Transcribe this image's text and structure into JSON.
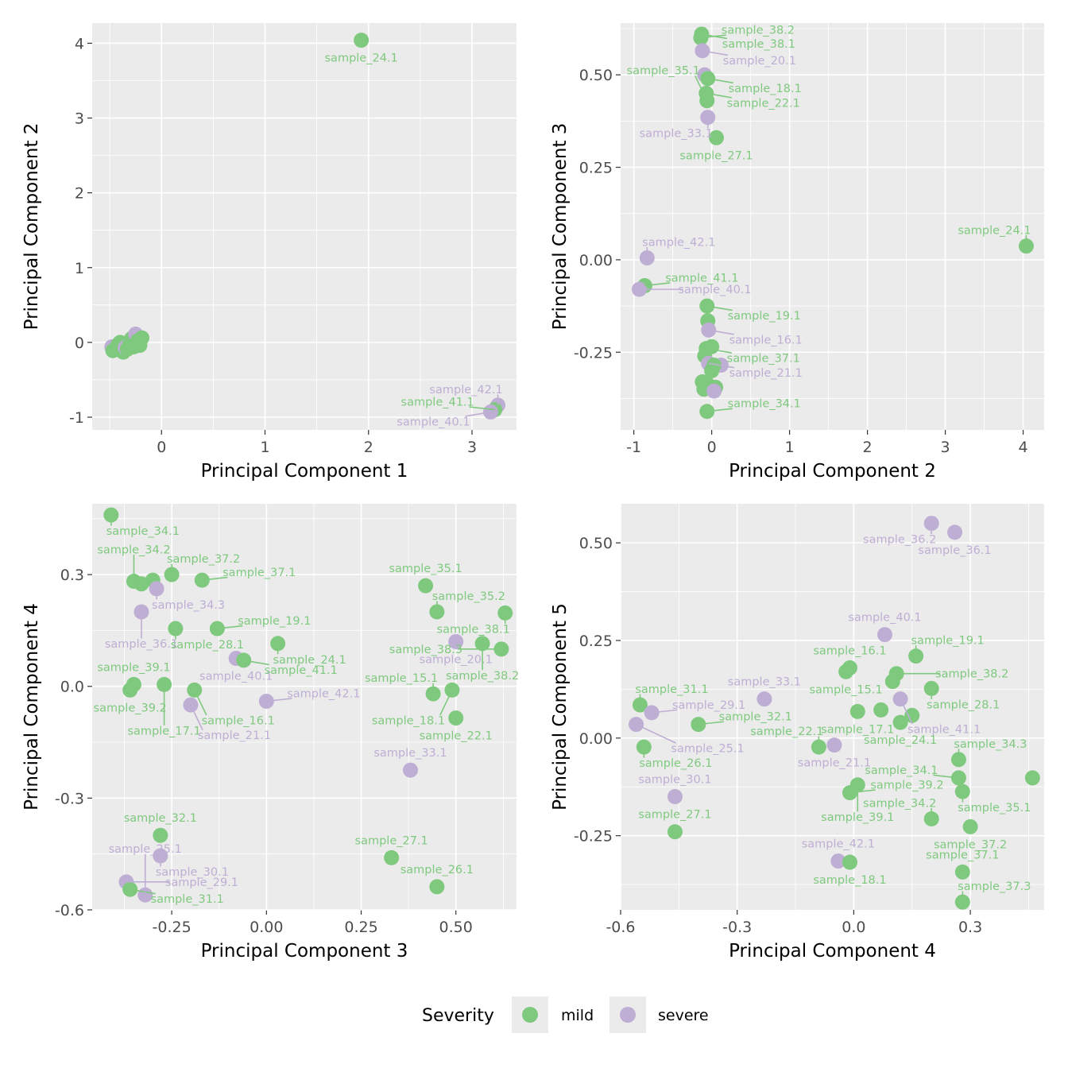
{
  "colors": {
    "mild": "#7fc97f",
    "severe": "#beaed4"
  },
  "legend": {
    "title": "Severity",
    "items": [
      {
        "key": "mild",
        "label": "mild"
      },
      {
        "key": "severe",
        "label": "severe"
      }
    ]
  },
  "chart_data": [
    {
      "type": "scatter",
      "xlabel": "Principal Component 1",
      "ylabel": "Principal Component 2",
      "xlim": [
        -0.67,
        3.43
      ],
      "ylim": [
        -1.17,
        4.27
      ],
      "xticks": [
        0,
        1,
        2,
        3
      ],
      "xtick_labels": [
        "0",
        "1",
        "2",
        "3"
      ],
      "yticks": [
        -1,
        0,
        1,
        2,
        3,
        4
      ],
      "ytick_labels": [
        "-1",
        "0",
        "1",
        "2",
        "3",
        "4"
      ],
      "grid": true,
      "points": [
        {
          "x": 1.93,
          "y": 4.04,
          "severity": "mild",
          "label": "sample_24.1"
        },
        {
          "x": 3.25,
          "y": -0.84,
          "severity": "severe",
          "label": "sample_42.1"
        },
        {
          "x": 3.22,
          "y": -0.9,
          "severity": "mild",
          "label": "sample_41.1"
        },
        {
          "x": 3.18,
          "y": -0.93,
          "severity": "severe",
          "label": "sample_40.1"
        },
        {
          "x": -0.48,
          "y": -0.06,
          "severity": "severe",
          "label": ""
        },
        {
          "x": -0.47,
          "y": -0.11,
          "severity": "mild",
          "label": ""
        },
        {
          "x": -0.42,
          "y": -0.03,
          "severity": "mild",
          "label": ""
        },
        {
          "x": -0.4,
          "y": 0.0,
          "severity": "mild",
          "label": ""
        },
        {
          "x": -0.37,
          "y": -0.13,
          "severity": "mild",
          "label": ""
        },
        {
          "x": -0.35,
          "y": -0.07,
          "severity": "severe",
          "label": ""
        },
        {
          "x": -0.33,
          "y": -0.09,
          "severity": "mild",
          "label": ""
        },
        {
          "x": -0.31,
          "y": -0.04,
          "severity": "mild",
          "label": ""
        },
        {
          "x": -0.29,
          "y": 0.05,
          "severity": "mild",
          "label": ""
        },
        {
          "x": -0.27,
          "y": -0.06,
          "severity": "mild",
          "label": ""
        },
        {
          "x": -0.25,
          "y": 0.11,
          "severity": "severe",
          "label": ""
        },
        {
          "x": -0.23,
          "y": 0.02,
          "severity": "mild",
          "label": ""
        },
        {
          "x": -0.21,
          "y": -0.04,
          "severity": "mild",
          "label": ""
        },
        {
          "x": -0.19,
          "y": 0.06,
          "severity": "mild",
          "label": ""
        }
      ]
    },
    {
      "type": "scatter",
      "xlabel": "Principal Component 2",
      "ylabel": "Principal Component 3",
      "xlim": [
        -1.17,
        4.27
      ],
      "ylim": [
        -0.46,
        0.64
      ],
      "xticks": [
        -1,
        0,
        1,
        2,
        3,
        4
      ],
      "xtick_labels": [
        "-1",
        "0",
        "1",
        "2",
        "3",
        "4"
      ],
      "yticks": [
        -0.25,
        0,
        0.25,
        0.5
      ],
      "ytick_labels": [
        "-0.25",
        "0.00",
        "0.25",
        "0.50"
      ],
      "grid": true,
      "points": [
        {
          "x": 4.04,
          "y": 0.037,
          "severity": "mild",
          "label": "sample_24.1"
        },
        {
          "x": -0.13,
          "y": 0.61,
          "severity": "mild",
          "label": "sample_38.1"
        },
        {
          "x": -0.14,
          "y": 0.6,
          "severity": "mild",
          "label": "sample_38.2"
        },
        {
          "x": -0.12,
          "y": 0.565,
          "severity": "severe",
          "label": "sample_20.1"
        },
        {
          "x": -0.09,
          "y": 0.5,
          "severity": "severe",
          "label": ""
        },
        {
          "x": -0.05,
          "y": 0.49,
          "severity": "mild",
          "label": "sample_18.1"
        },
        {
          "x": -0.07,
          "y": 0.45,
          "severity": "mild",
          "label": "sample_22.1"
        },
        {
          "x": -0.06,
          "y": 0.43,
          "severity": "mild",
          "label": "sample_35.1"
        },
        {
          "x": -0.05,
          "y": 0.385,
          "severity": "severe",
          "label": "sample_33.1"
        },
        {
          "x": 0.06,
          "y": 0.33,
          "severity": "mild",
          "label": "sample_27.1"
        },
        {
          "x": -0.83,
          "y": 0.005,
          "severity": "severe",
          "label": "sample_42.1"
        },
        {
          "x": -0.86,
          "y": -0.07,
          "severity": "mild",
          "label": "sample_41.1"
        },
        {
          "x": -0.93,
          "y": -0.08,
          "severity": "severe",
          "label": "sample_40.1"
        },
        {
          "x": -0.06,
          "y": -0.125,
          "severity": "mild",
          "label": "sample_19.1"
        },
        {
          "x": -0.05,
          "y": -0.165,
          "severity": "mild",
          "label": ""
        },
        {
          "x": -0.04,
          "y": -0.19,
          "severity": "severe",
          "label": "sample_16.1"
        },
        {
          "x": -0.07,
          "y": -0.24,
          "severity": "mild",
          "label": "sample_37.1"
        },
        {
          "x": 0.0,
          "y": -0.235,
          "severity": "mild",
          "label": ""
        },
        {
          "x": -0.09,
          "y": -0.26,
          "severity": "mild",
          "label": ""
        },
        {
          "x": -0.04,
          "y": -0.28,
          "severity": "severe",
          "label": "sample_21.1"
        },
        {
          "x": 0.12,
          "y": -0.285,
          "severity": "severe",
          "label": ""
        },
        {
          "x": 0.03,
          "y": -0.285,
          "severity": "mild",
          "label": ""
        },
        {
          "x": 0.0,
          "y": -0.3,
          "severity": "mild",
          "label": ""
        },
        {
          "x": -0.12,
          "y": -0.33,
          "severity": "mild",
          "label": ""
        },
        {
          "x": -0.06,
          "y": -0.335,
          "severity": "mild",
          "label": ""
        },
        {
          "x": 0.05,
          "y": -0.345,
          "severity": "mild",
          "label": ""
        },
        {
          "x": -0.1,
          "y": -0.35,
          "severity": "mild",
          "label": ""
        },
        {
          "x": 0.03,
          "y": -0.355,
          "severity": "severe",
          "label": ""
        },
        {
          "x": -0.06,
          "y": -0.41,
          "severity": "mild",
          "label": "sample_34.1"
        }
      ]
    },
    {
      "type": "scatter",
      "xlabel": "Principal Component 3",
      "ylabel": "Principal Component 4",
      "xlim": [
        -0.46,
        0.66
      ],
      "ylim": [
        -0.6,
        0.49
      ],
      "xticks": [
        -0.25,
        0,
        0.25,
        0.5
      ],
      "xtick_labels": [
        "-0.25",
        "0.00",
        "0.25",
        "0.50"
      ],
      "yticks": [
        -0.6,
        -0.3,
        0,
        0.3
      ],
      "ytick_labels": [
        "-0.6",
        "-0.3",
        "0.0",
        "0.3"
      ],
      "grid": true,
      "points": [
        {
          "x": -0.41,
          "y": 0.46,
          "severity": "mild",
          "label": "sample_34.1"
        },
        {
          "x": -0.35,
          "y": 0.282,
          "severity": "mild",
          "label": "sample_34.2"
        },
        {
          "x": -0.33,
          "y": 0.275,
          "severity": "mild",
          "label": ""
        },
        {
          "x": -0.3,
          "y": 0.285,
          "severity": "mild",
          "label": ""
        },
        {
          "x": -0.29,
          "y": 0.262,
          "severity": "severe",
          "label": "sample_34.3"
        },
        {
          "x": -0.25,
          "y": 0.3,
          "severity": "mild",
          "label": "sample_37.2"
        },
        {
          "x": -0.17,
          "y": 0.285,
          "severity": "mild",
          "label": "sample_37.1"
        },
        {
          "x": -0.33,
          "y": 0.2,
          "severity": "severe",
          "label": "sample_36.1"
        },
        {
          "x": -0.24,
          "y": 0.155,
          "severity": "mild",
          "label": "sample_28.1"
        },
        {
          "x": -0.13,
          "y": 0.155,
          "severity": "mild",
          "label": "sample_19.1"
        },
        {
          "x": 0.03,
          "y": 0.115,
          "severity": "mild",
          "label": "sample_24.1"
        },
        {
          "x": -0.08,
          "y": 0.075,
          "severity": "severe",
          "label": "sample_40.1"
        },
        {
          "x": -0.06,
          "y": 0.07,
          "severity": "mild",
          "label": "sample_41.1"
        },
        {
          "x": -0.35,
          "y": 0.005,
          "severity": "mild",
          "label": "sample_39.1"
        },
        {
          "x": -0.36,
          "y": -0.01,
          "severity": "mild",
          "label": "sample_39.2"
        },
        {
          "x": -0.27,
          "y": 0.005,
          "severity": "mild",
          "label": "sample_17.1"
        },
        {
          "x": -0.19,
          "y": -0.01,
          "severity": "mild",
          "label": "sample_16.1"
        },
        {
          "x": -0.2,
          "y": -0.05,
          "severity": "severe",
          "label": "sample_21.1"
        },
        {
          "x": 0.0,
          "y": -0.04,
          "severity": "severe",
          "label": "sample_42.1"
        },
        {
          "x": 0.42,
          "y": 0.27,
          "severity": "mild",
          "label": "sample_35.1"
        },
        {
          "x": 0.45,
          "y": 0.2,
          "severity": "mild",
          "label": "sample_35.2"
        },
        {
          "x": 0.63,
          "y": 0.197,
          "severity": "mild",
          "label": "sample_38.1"
        },
        {
          "x": 0.5,
          "y": 0.12,
          "severity": "severe",
          "label": "sample_20.1"
        },
        {
          "x": 0.57,
          "y": 0.115,
          "severity": "mild",
          "label": "sample_38.2"
        },
        {
          "x": 0.62,
          "y": 0.1,
          "severity": "mild",
          "label": "sample_38.3"
        },
        {
          "x": 0.49,
          "y": -0.01,
          "severity": "mild",
          "label": "sample_18.1"
        },
        {
          "x": 0.44,
          "y": -0.02,
          "severity": "mild",
          "label": "sample_15.1"
        },
        {
          "x": 0.5,
          "y": -0.085,
          "severity": "mild",
          "label": "sample_22.1"
        },
        {
          "x": 0.38,
          "y": -0.225,
          "severity": "severe",
          "label": "sample_33.1"
        },
        {
          "x": 0.33,
          "y": -0.46,
          "severity": "mild",
          "label": "sample_27.1"
        },
        {
          "x": 0.45,
          "y": -0.538,
          "severity": "mild",
          "label": "sample_26.1"
        },
        {
          "x": -0.28,
          "y": -0.4,
          "severity": "mild",
          "label": "sample_32.1"
        },
        {
          "x": -0.28,
          "y": -0.455,
          "severity": "severe",
          "label": "sample_30.1"
        },
        {
          "x": -0.37,
          "y": -0.525,
          "severity": "severe",
          "label": "sample_29.1"
        },
        {
          "x": -0.36,
          "y": -0.545,
          "severity": "mild",
          "label": "sample_31.1"
        },
        {
          "x": -0.32,
          "y": -0.56,
          "severity": "severe",
          "label": "sample_25.1"
        }
      ]
    },
    {
      "type": "scatter",
      "xlabel": "Principal Component 4",
      "ylabel": "Principal Component 5",
      "xlim": [
        -0.6,
        0.49
      ],
      "ylim": [
        -0.44,
        0.6
      ],
      "xticks": [
        -0.6,
        -0.3,
        0,
        0.3
      ],
      "xtick_labels": [
        "-0.6",
        "-0.3",
        "0.0",
        "0.3"
      ],
      "yticks": [
        -0.25,
        0,
        0.25,
        0.5
      ],
      "ytick_labels": [
        "-0.25",
        "0.00",
        "0.25",
        "0.50"
      ],
      "grid": true,
      "points": [
        {
          "x": 0.2,
          "y": 0.55,
          "severity": "severe",
          "label": "sample_36.2"
        },
        {
          "x": 0.26,
          "y": 0.527,
          "severity": "severe",
          "label": "sample_36.1"
        },
        {
          "x": 0.08,
          "y": 0.265,
          "severity": "severe",
          "label": "sample_40.1"
        },
        {
          "x": 0.16,
          "y": 0.21,
          "severity": "mild",
          "label": "sample_19.1"
        },
        {
          "x": -0.01,
          "y": 0.18,
          "severity": "mild",
          "label": "sample_16.1"
        },
        {
          "x": -0.02,
          "y": 0.17,
          "severity": "mild",
          "label": "sample_15.1"
        },
        {
          "x": 0.11,
          "y": 0.165,
          "severity": "mild",
          "label": "sample_38.2"
        },
        {
          "x": 0.1,
          "y": 0.145,
          "severity": "mild",
          "label": ""
        },
        {
          "x": 0.2,
          "y": 0.127,
          "severity": "mild",
          "label": "sample_28.1"
        },
        {
          "x": -0.23,
          "y": 0.1,
          "severity": "severe",
          "label": "sample_33.1"
        },
        {
          "x": 0.12,
          "y": 0.1,
          "severity": "severe",
          "label": "sample_41.1"
        },
        {
          "x": 0.07,
          "y": 0.072,
          "severity": "mild",
          "label": ""
        },
        {
          "x": 0.01,
          "y": 0.068,
          "severity": "mild",
          "label": "sample_17.1"
        },
        {
          "x": 0.15,
          "y": 0.058,
          "severity": "mild",
          "label": ""
        },
        {
          "x": 0.12,
          "y": 0.04,
          "severity": "mild",
          "label": "sample_24.1"
        },
        {
          "x": -0.55,
          "y": 0.085,
          "severity": "mild",
          "label": "sample_31.1"
        },
        {
          "x": -0.52,
          "y": 0.065,
          "severity": "severe",
          "label": "sample_29.1"
        },
        {
          "x": -0.56,
          "y": 0.035,
          "severity": "severe",
          "label": "sample_25.1"
        },
        {
          "x": -0.4,
          "y": 0.035,
          "severity": "mild",
          "label": "sample_32.1"
        },
        {
          "x": -0.54,
          "y": -0.023,
          "severity": "mild",
          "label": "sample_26.1"
        },
        {
          "x": -0.05,
          "y": -0.018,
          "severity": "severe",
          "label": "sample_21.1"
        },
        {
          "x": -0.09,
          "y": -0.023,
          "severity": "mild",
          "label": "sample_22.1"
        },
        {
          "x": 0.27,
          "y": -0.055,
          "severity": "mild",
          "label": "sample_34.3"
        },
        {
          "x": 0.27,
          "y": -0.102,
          "severity": "mild",
          "label": "sample_34.1"
        },
        {
          "x": 0.46,
          "y": -0.102,
          "severity": "mild",
          "label": ""
        },
        {
          "x": 0.01,
          "y": -0.12,
          "severity": "mild",
          "label": "sample_39.1"
        },
        {
          "x": -0.01,
          "y": -0.14,
          "severity": "mild",
          "label": "sample_39.2"
        },
        {
          "x": 0.28,
          "y": -0.137,
          "severity": "mild",
          "label": "sample_35.1"
        },
        {
          "x": -0.46,
          "y": -0.15,
          "severity": "severe",
          "label": "sample_30.1"
        },
        {
          "x": 0.2,
          "y": -0.207,
          "severity": "mild",
          "label": "sample_34.2"
        },
        {
          "x": 0.3,
          "y": -0.227,
          "severity": "mild",
          "label": "sample_37.2"
        },
        {
          "x": -0.46,
          "y": -0.24,
          "severity": "mild",
          "label": "sample_27.1"
        },
        {
          "x": -0.04,
          "y": -0.315,
          "severity": "severe",
          "label": "sample_42.1"
        },
        {
          "x": -0.01,
          "y": -0.318,
          "severity": "mild",
          "label": "sample_18.1"
        },
        {
          "x": 0.28,
          "y": -0.343,
          "severity": "mild",
          "label": "sample_37.1"
        },
        {
          "x": 0.28,
          "y": -0.42,
          "severity": "mild",
          "label": "sample_37.3"
        }
      ]
    }
  ]
}
